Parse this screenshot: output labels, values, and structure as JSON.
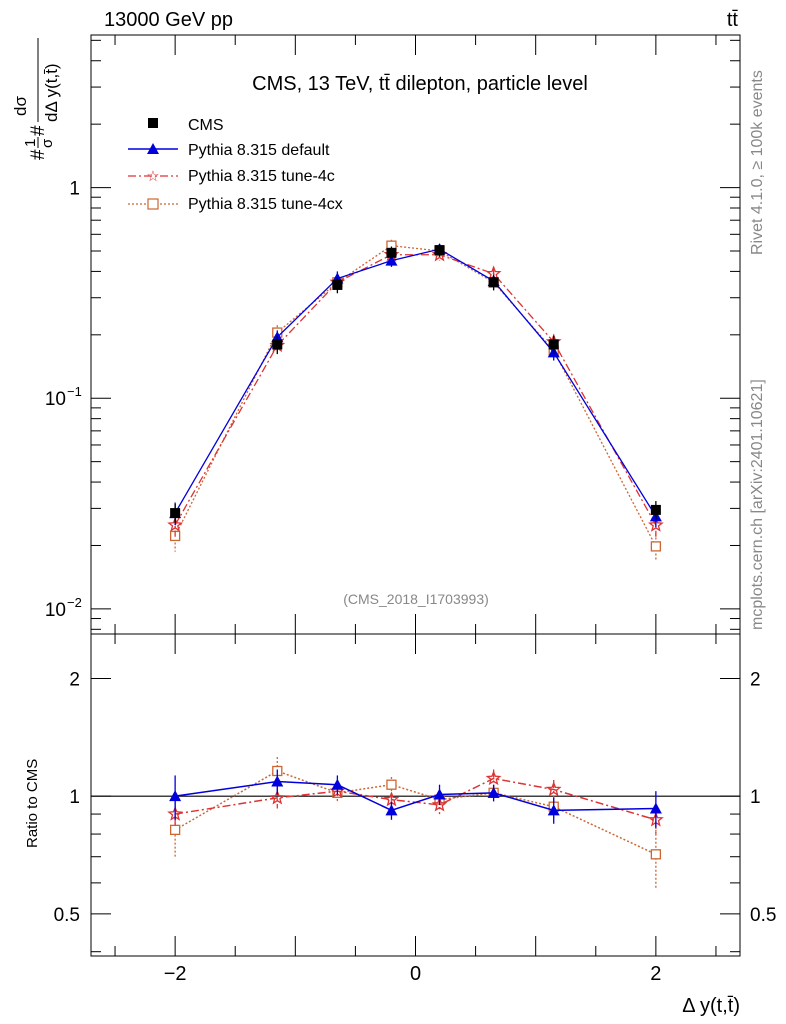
{
  "header": {
    "energy_label": "13000 GeV pp",
    "process_label": "tt̄"
  },
  "side_labels": {
    "rivet": "Rivet 4.1.0, ≥ 100k events",
    "mcplots": "mcplots.cern.ch [arXiv:2401.10621]"
  },
  "chart_data": [
    {
      "type": "line",
      "panel": "main",
      "title": "CMS, 13 TeV, tt̄ dilepton, particle level",
      "watermark": "(CMS_2018_I1703993)",
      "ylabel_num": "dσ",
      "ylabel_den": "dΔ y(t,t̄)",
      "ylabel_prefix": "#",
      "ylabel_frac_num": "1",
      "ylabel_frac_den": "σ",
      "ylabel_hash": "#",
      "yscale": "log",
      "ylim": [
        0.0076,
        5.3
      ],
      "xlim": [
        -2.7,
        2.7
      ],
      "y_tick_labels": [
        {
          "value": 1,
          "label": "1",
          "sup": ""
        },
        {
          "value": 0.1,
          "label": "10",
          "sup": "−1"
        },
        {
          "value": 0.01,
          "label": "10",
          "sup": "−2"
        }
      ],
      "x": [
        -2.0,
        -1.15,
        -0.65,
        -0.2,
        0.2,
        0.65,
        1.15,
        2.0
      ],
      "series": [
        {
          "name": "CMS",
          "color": "#000000",
          "marker": "square",
          "line": "none",
          "values": [
            0.0285,
            0.18,
            0.345,
            0.49,
            0.505,
            0.355,
            0.18,
            0.0295
          ],
          "err": [
            0.003,
            0.018,
            0.03,
            0.035,
            0.035,
            0.03,
            0.018,
            0.003
          ]
        },
        {
          "name": "Pythia 8.315 default",
          "color": "#0000dd",
          "marker": "triangle",
          "line": "solid",
          "values": [
            0.0285,
            0.195,
            0.37,
            0.45,
            0.51,
            0.36,
            0.165,
            0.0275
          ],
          "err": [
            0.0035,
            0.015,
            0.03,
            0.03,
            0.03,
            0.02,
            0.014,
            0.003
          ]
        },
        {
          "name": "Pythia 8.315 tune-4c",
          "color": "#dd3333",
          "marker": "star",
          "line": "dashdot",
          "values": [
            0.025,
            0.178,
            0.355,
            0.48,
            0.48,
            0.39,
            0.185,
            0.025
          ],
          "err": [
            0.003,
            0.015,
            0.025,
            0.03,
            0.03,
            0.03,
            0.016,
            0.003
          ]
        },
        {
          "name": "Pythia 8.315 tune-4cx",
          "color": "#cc6633",
          "marker": "open-square",
          "line": "dotted",
          "values": [
            0.0222,
            0.205,
            0.355,
            0.53,
            0.5,
            0.355,
            0.168,
            0.0198
          ],
          "err": [
            0.0035,
            0.017,
            0.025,
            0.035,
            0.035,
            0.025,
            0.015,
            0.003
          ]
        }
      ],
      "legend_position": "top-left"
    },
    {
      "type": "line",
      "panel": "ratio",
      "ylabel": "Ratio to CMS",
      "xlabel": "Δ y(t,t̄)",
      "yscale": "log",
      "ylim": [
        0.39,
        2.6
      ],
      "xlim": [
        -2.7,
        2.7
      ],
      "y_tick_labels": [
        {
          "value": 2,
          "label": "2"
        },
        {
          "value": 1,
          "label": "1"
        },
        {
          "value": 0.5,
          "label": "0.5"
        }
      ],
      "x_tick_labels": [
        {
          "value": -2,
          "label": "−2"
        },
        {
          "value": 0,
          "label": "0"
        },
        {
          "value": 2,
          "label": "2"
        }
      ],
      "x": [
        -2.0,
        -1.15,
        -0.65,
        -0.2,
        0.2,
        0.65,
        1.15,
        2.0
      ],
      "series": [
        {
          "name": "Pythia 8.315 default",
          "values": [
            1.0,
            1.09,
            1.07,
            0.92,
            1.01,
            1.02,
            0.92,
            0.93
          ],
          "err": [
            0.13,
            0.08,
            0.06,
            0.05,
            0.06,
            0.05,
            0.07,
            0.1
          ]
        },
        {
          "name": "Pythia 8.315 tune-4c",
          "values": [
            0.9,
            0.99,
            1.03,
            0.98,
            0.95,
            1.11,
            1.04,
            0.87
          ],
          "err": [
            0.07,
            0.06,
            0.05,
            0.04,
            0.05,
            0.06,
            0.06,
            0.08
          ]
        },
        {
          "name": "Pythia 8.315 tune-4cx",
          "values": [
            0.82,
            1.16,
            1.02,
            1.07,
            0.98,
            1.02,
            0.94,
            0.71
          ],
          "err": [
            0.12,
            0.1,
            0.06,
            0.05,
            0.05,
            0.05,
            0.06,
            0.13
          ]
        }
      ]
    }
  ]
}
